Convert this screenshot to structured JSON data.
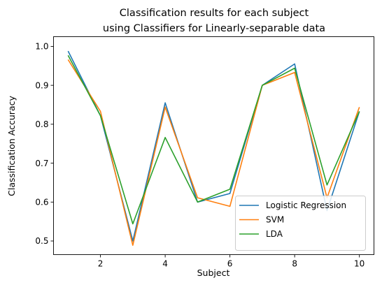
{
  "chart_data": {
    "type": "line",
    "title_lines": [
      "Classification results for each subject",
      "using Classifiers for Linearly-separable data"
    ],
    "xlabel": "Subject",
    "ylabel": "Classification Accuracy",
    "x": [
      1,
      2,
      3,
      4,
      5,
      6,
      7,
      8,
      9,
      10
    ],
    "xticks": [
      2,
      4,
      6,
      8,
      10
    ],
    "yticks": [
      0.5,
      0.6,
      0.7,
      0.8,
      0.9,
      1.0
    ],
    "xtick_labels": [
      "2",
      "4",
      "6",
      "8",
      "10"
    ],
    "ytick_labels": [
      "0.5",
      "0.6",
      "0.7",
      "0.8",
      "0.9",
      "1.0"
    ],
    "xlim": [
      0.55,
      10.45
    ],
    "ylim": [
      0.465,
      1.025
    ],
    "grid": false,
    "legend_position": "lower-right",
    "series": [
      {
        "name": "Logistic Regression",
        "color": "#1f77b4",
        "values": [
          0.988,
          0.822,
          0.5,
          0.855,
          0.6,
          0.622,
          0.9,
          0.955,
          0.578,
          0.833
        ]
      },
      {
        "name": "SVM",
        "color": "#ff7f0e",
        "values": [
          0.966,
          0.833,
          0.489,
          0.844,
          0.611,
          0.589,
          0.9,
          0.933,
          0.611,
          0.844
        ]
      },
      {
        "name": "LDA",
        "color": "#2ca02c",
        "values": [
          0.977,
          0.822,
          0.544,
          0.766,
          0.6,
          0.633,
          0.9,
          0.944,
          0.644,
          0.833
        ]
      }
    ]
  }
}
